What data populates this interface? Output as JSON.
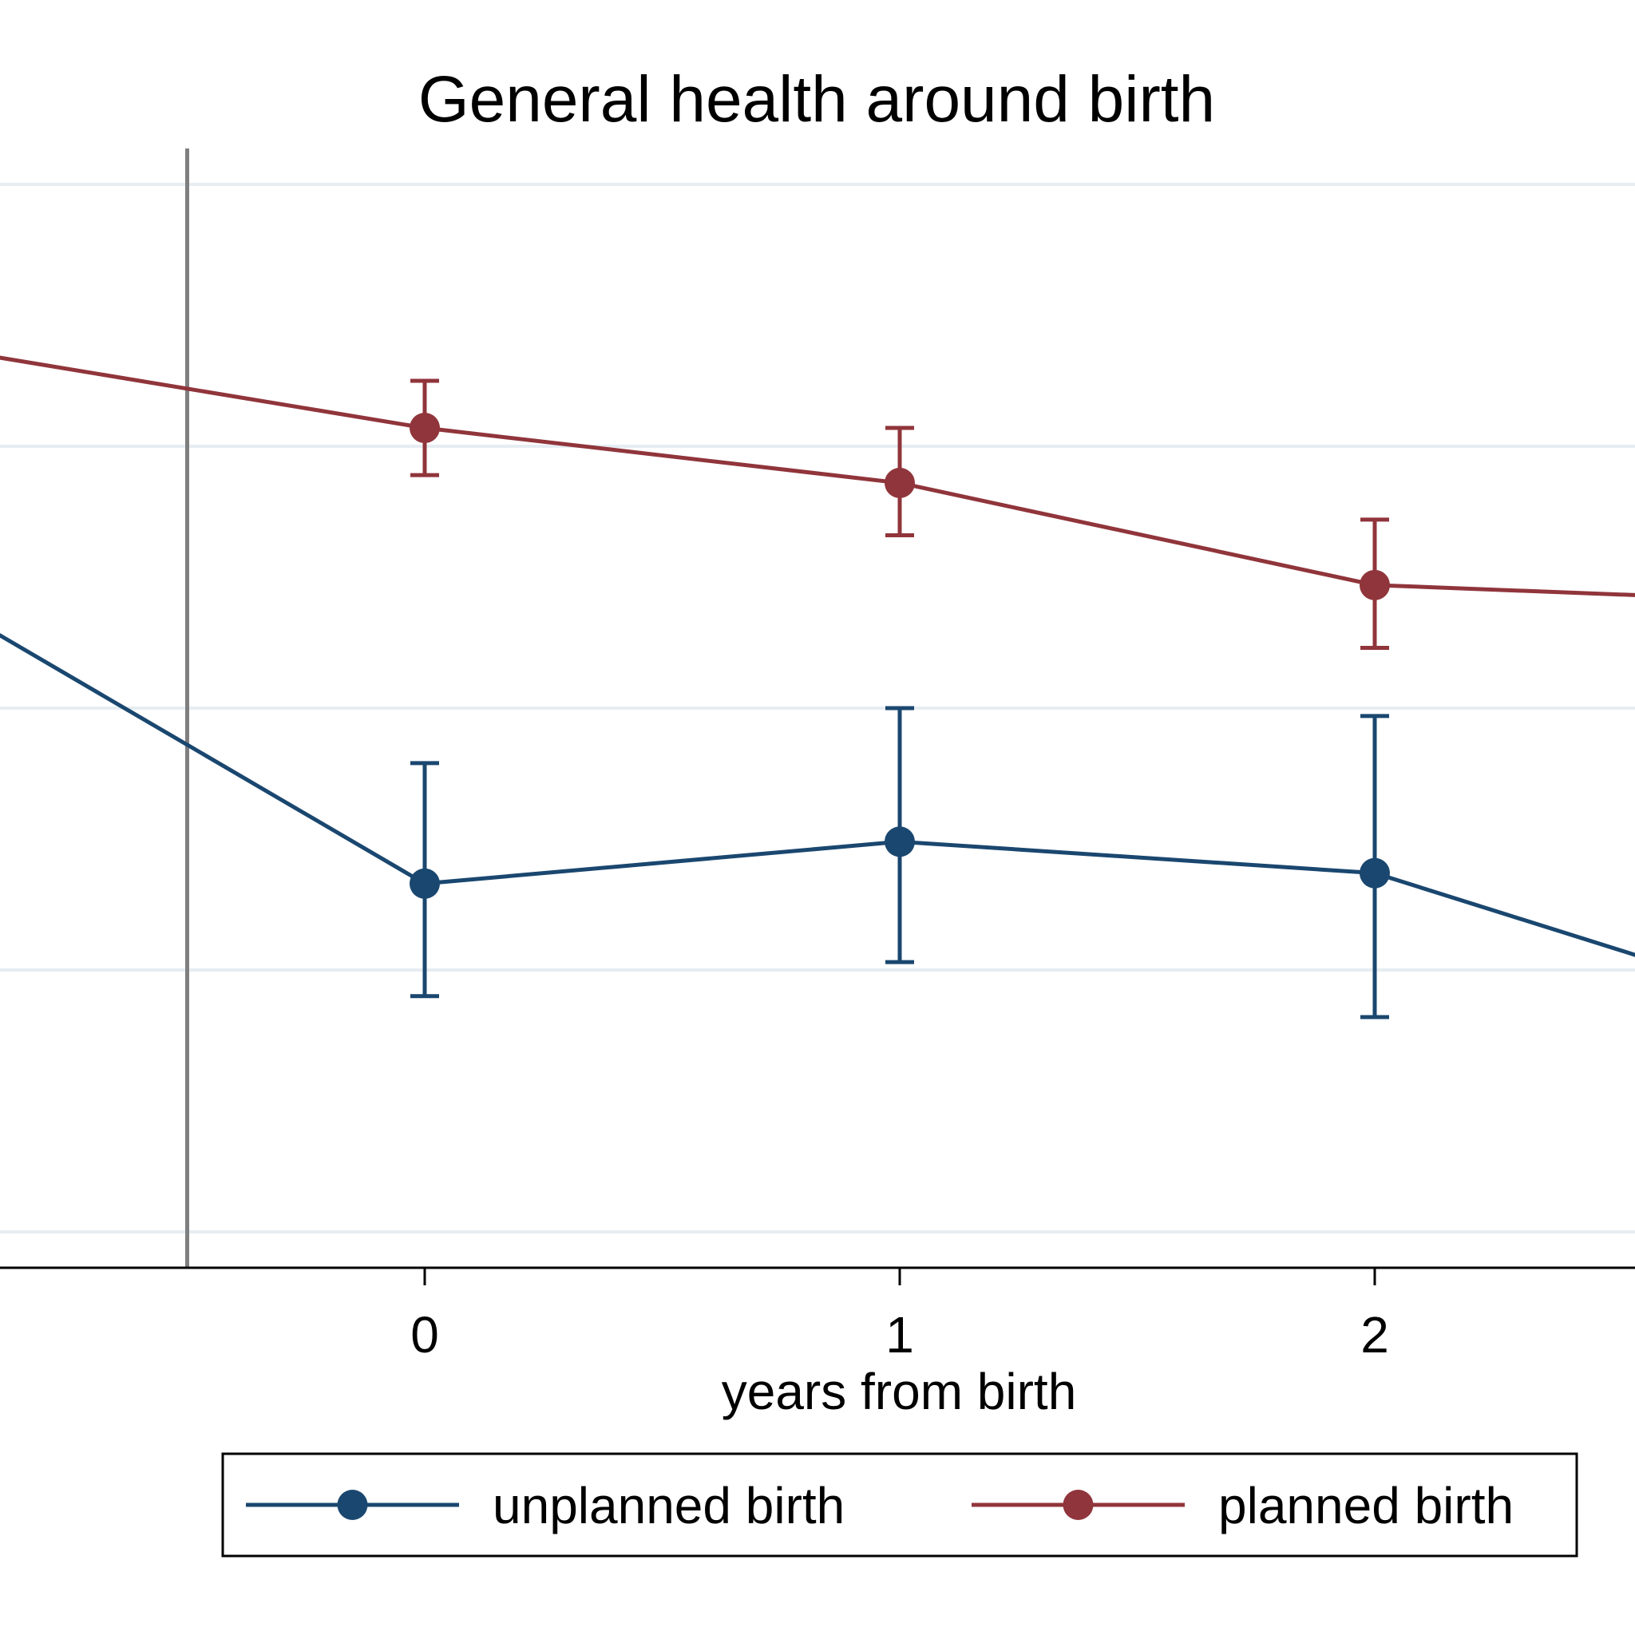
{
  "chart_data": {
    "type": "line",
    "title": "General health around birth",
    "xlabel": "years from birth",
    "ylabel": "",
    "x_ticks": [
      0,
      1,
      2
    ],
    "xlim": [
      -0.9,
      2.55
    ],
    "ylim": [
      0,
      4.2
    ],
    "grid": true,
    "reference_line_x": -0.5,
    "legend_position": "bottom",
    "series": [
      {
        "name": "unplanned birth",
        "color": "#1a476f",
        "x": [
          -1,
          0,
          1,
          2,
          3
        ],
        "y": [
          2.39,
          1.33,
          1.49,
          1.37,
          0.8
        ],
        "ci_low": [
          null,
          0.9,
          1.03,
          0.82,
          null
        ],
        "ci_high": [
          null,
          1.79,
          2.0,
          1.97,
          null
        ]
      },
      {
        "name": "planned birth",
        "color": "#90353b",
        "x": [
          -1,
          0,
          1,
          2,
          3
        ],
        "y": [
          3.37,
          3.07,
          2.86,
          2.47,
          2.4
        ],
        "ci_low": [
          null,
          2.89,
          2.66,
          2.23,
          null
        ],
        "ci_high": [
          null,
          3.25,
          3.07,
          2.72,
          null
        ]
      }
    ]
  }
}
